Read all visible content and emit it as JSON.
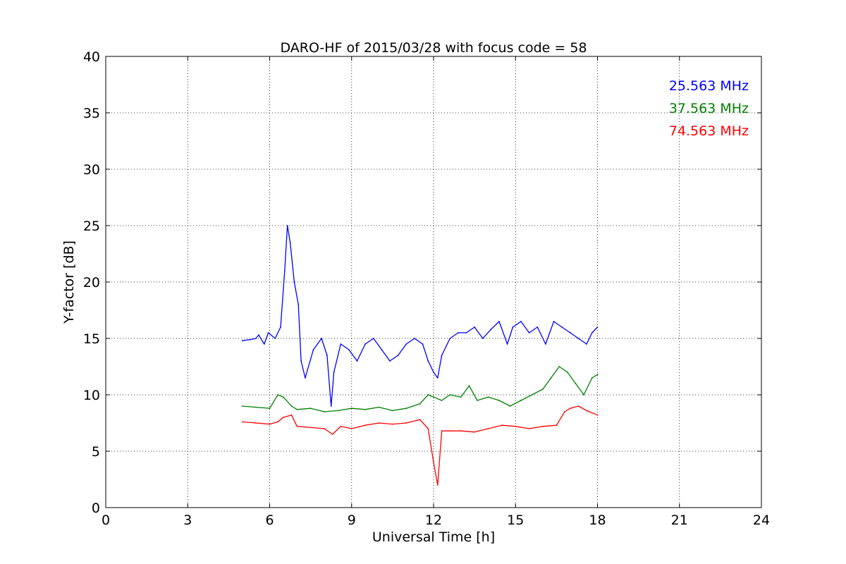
{
  "chart_data": {
    "type": "line",
    "title": "DARO-HF of 2015/03/28 with focus code = 58",
    "xlabel": "Universal Time [h]",
    "ylabel": "Y-factor [dB]",
    "xlim": [
      0,
      24
    ],
    "ylim": [
      0,
      40
    ],
    "xticks": [
      0,
      3,
      6,
      9,
      12,
      15,
      18,
      21,
      24
    ],
    "yticks": [
      0,
      5,
      10,
      15,
      20,
      25,
      30,
      35,
      40
    ],
    "xtick_labels": [
      "0",
      "3",
      "6",
      "9",
      "12",
      "15",
      "18",
      "21",
      "24"
    ],
    "ytick_labels": [
      "0",
      "5",
      "10",
      "15",
      "20",
      "25",
      "30",
      "35",
      "40"
    ],
    "grid": true,
    "legend_position": "top-right",
    "series": [
      {
        "name": "25.563 MHz",
        "color": "#0000ff",
        "x": [
          5.0,
          5.3,
          5.5,
          5.6,
          5.8,
          5.95,
          6.2,
          6.4,
          6.55,
          6.65,
          6.75,
          6.9,
          7.05,
          7.15,
          7.3,
          7.6,
          7.9,
          8.1,
          8.25,
          8.35,
          8.6,
          8.9,
          9.2,
          9.5,
          9.8,
          10.1,
          10.4,
          10.7,
          11.0,
          11.3,
          11.6,
          11.8,
          12.0,
          12.15,
          12.3,
          12.6,
          12.9,
          13.2,
          13.5,
          13.8,
          14.1,
          14.4,
          14.7,
          14.9,
          15.2,
          15.5,
          15.8,
          16.1,
          16.4,
          16.7,
          17.0,
          17.3,
          17.6,
          17.8,
          18.0
        ],
        "values": [
          14.8,
          14.9,
          15.0,
          15.3,
          14.5,
          15.5,
          15.0,
          16.0,
          21.0,
          25.0,
          23.5,
          20.0,
          18.0,
          13.0,
          11.5,
          14.0,
          15.0,
          13.5,
          9.0,
          12.0,
          14.5,
          14.0,
          13.0,
          14.5,
          15.0,
          14.0,
          13.0,
          13.5,
          14.5,
          15.0,
          14.5,
          13.0,
          12.0,
          11.5,
          13.5,
          15.0,
          15.5,
          15.5,
          16.0,
          15.0,
          15.8,
          16.5,
          14.5,
          16.0,
          16.5,
          15.5,
          16.0,
          14.5,
          16.5,
          16.0,
          15.5,
          15.0,
          14.5,
          15.5,
          16.0
        ]
      },
      {
        "name": "37.563 MHz",
        "color": "#008000",
        "x": [
          5.0,
          5.5,
          6.0,
          6.3,
          6.5,
          6.8,
          7.0,
          7.5,
          8.0,
          8.5,
          9.0,
          9.5,
          10.0,
          10.5,
          11.0,
          11.5,
          11.8,
          12.0,
          12.3,
          12.6,
          13.0,
          13.3,
          13.6,
          14.0,
          14.4,
          14.8,
          15.2,
          15.6,
          16.0,
          16.3,
          16.6,
          16.9,
          17.2,
          17.5,
          17.8,
          18.0
        ],
        "values": [
          9.0,
          8.9,
          8.8,
          10.0,
          9.8,
          9.0,
          8.7,
          8.8,
          8.5,
          8.6,
          8.8,
          8.7,
          8.9,
          8.6,
          8.8,
          9.2,
          10.0,
          9.8,
          9.5,
          10.0,
          9.8,
          10.8,
          9.5,
          9.8,
          9.5,
          9.0,
          9.5,
          10.0,
          10.5,
          11.5,
          12.5,
          12.0,
          11.0,
          10.0,
          11.5,
          11.8
        ]
      },
      {
        "name": "74.563 MHz",
        "color": "#ff0000",
        "x": [
          5.0,
          5.5,
          6.0,
          6.3,
          6.5,
          6.8,
          7.0,
          7.5,
          8.0,
          8.3,
          8.6,
          9.0,
          9.5,
          10.0,
          10.5,
          11.0,
          11.5,
          11.8,
          12.0,
          12.15,
          12.3,
          12.6,
          13.0,
          13.5,
          14.0,
          14.5,
          15.0,
          15.5,
          16.0,
          16.5,
          16.8,
          17.0,
          17.3,
          17.6,
          18.0
        ],
        "values": [
          7.6,
          7.5,
          7.4,
          7.6,
          8.0,
          8.2,
          7.2,
          7.1,
          7.0,
          6.5,
          7.2,
          7.0,
          7.3,
          7.5,
          7.4,
          7.5,
          7.8,
          7.0,
          4.0,
          2.0,
          6.8,
          6.8,
          6.8,
          6.7,
          7.0,
          7.3,
          7.2,
          7.0,
          7.2,
          7.3,
          8.5,
          8.8,
          9.0,
          8.6,
          8.2
        ]
      }
    ]
  }
}
